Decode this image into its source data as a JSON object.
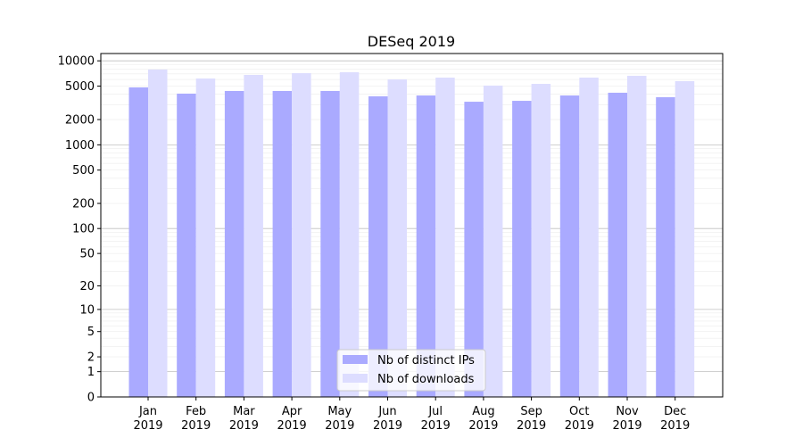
{
  "chart_data": {
    "type": "bar",
    "title": "DESeq 2019",
    "xlabel": "",
    "ylabel": "",
    "yscale": "log10(1+x)",
    "ylim": [
      0,
      12000
    ],
    "grid": true,
    "legend_position": "bottom-center",
    "categories": [
      "Jan\n2019",
      "Feb\n2019",
      "Mar\n2019",
      "Apr\n2019",
      "May\n2019",
      "Jun\n2019",
      "Jul\n2019",
      "Aug\n2019",
      "Sep\n2019",
      "Oct\n2019",
      "Nov\n2019",
      "Dec\n2019"
    ],
    "yticks": [
      0,
      1,
      2,
      5,
      10,
      20,
      50,
      100,
      200,
      500,
      1000,
      2000,
      5000,
      10000
    ],
    "series": [
      {
        "name": "Nb of distinct IPs",
        "color": "#aaaaff",
        "values": [
          4830,
          4070,
          4380,
          4380,
          4380,
          3780,
          3870,
          3260,
          3340,
          3870,
          4170,
          3690
        ]
      },
      {
        "name": "Nb of downloads",
        "color": "#ddddff",
        "values": [
          7870,
          6160,
          6800,
          7130,
          7310,
          6010,
          6310,
          5070,
          5320,
          6310,
          6640,
          5730
        ]
      }
    ]
  }
}
